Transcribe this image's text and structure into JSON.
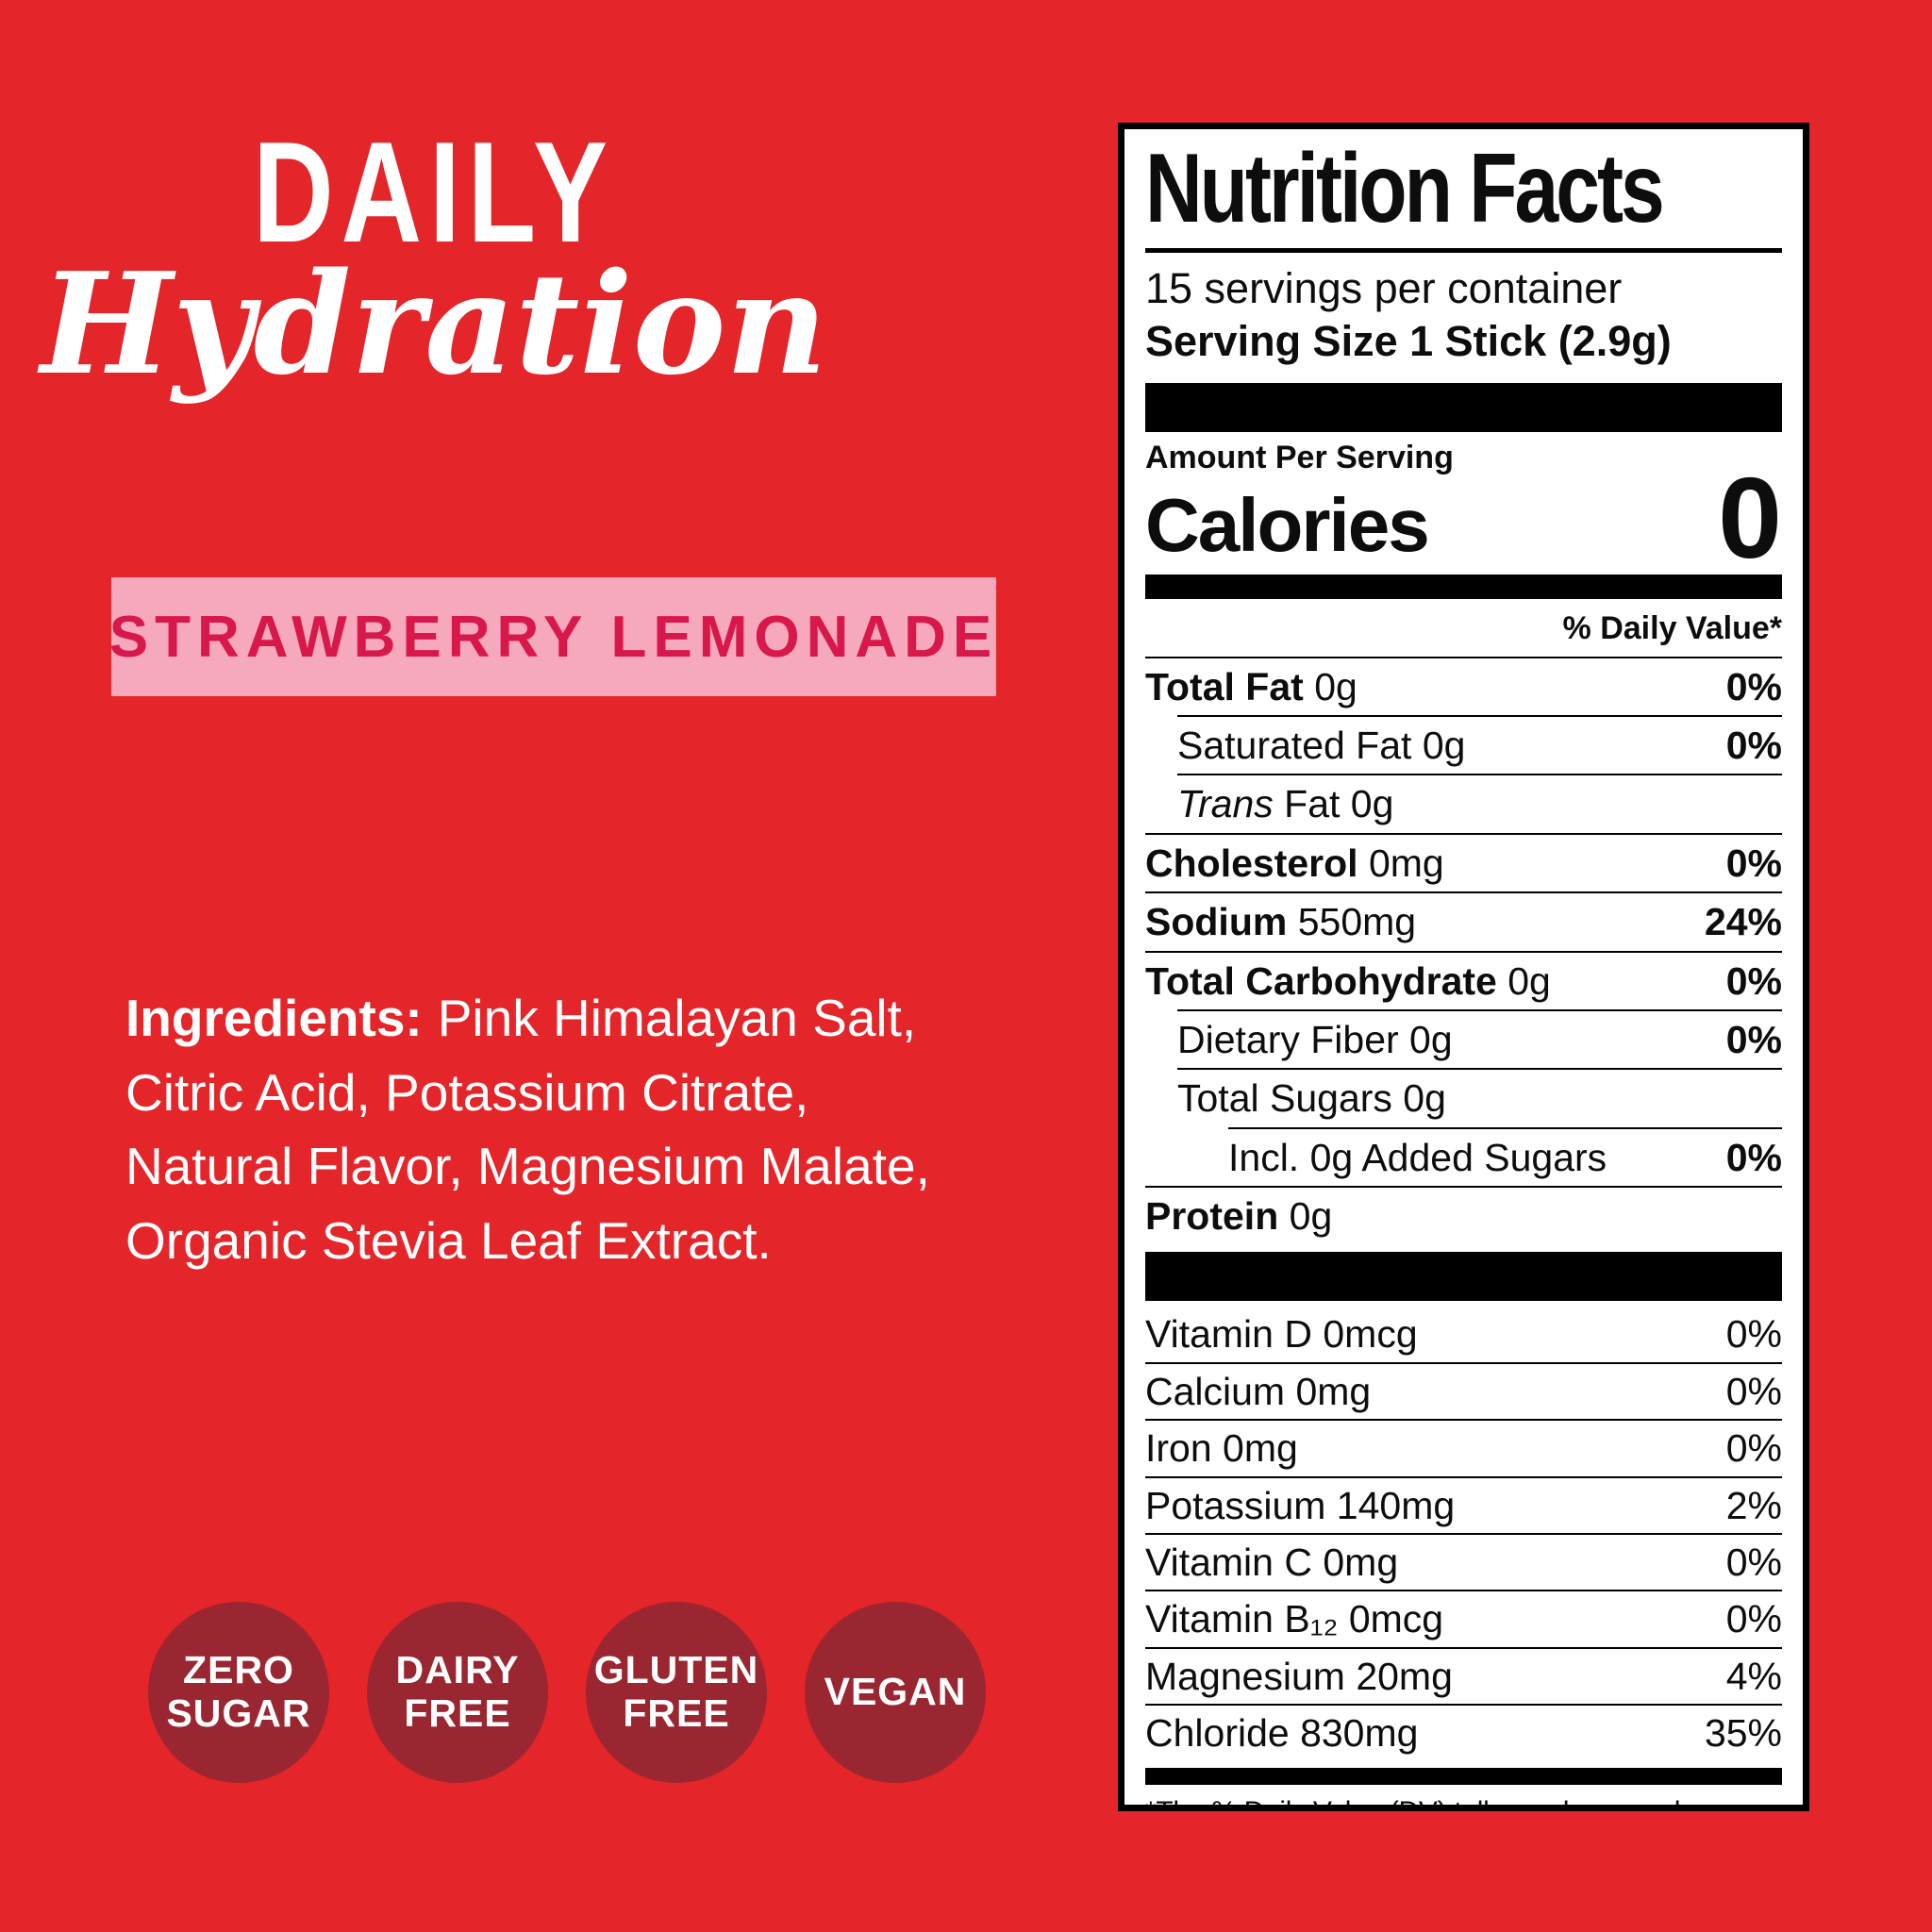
{
  "colors": {
    "background": "#E42529",
    "panel_bg": "#FFFFFF",
    "badge_bg": "#F6A8BC",
    "badge_text": "#D8174A",
    "circle_bg": "#992630"
  },
  "brand": {
    "title": "DAILY",
    "subtitle": "Hydration"
  },
  "flavor_badge": {
    "label": "STRAWBERRY LEMONADE"
  },
  "ingredients": {
    "label": "Ingredients:",
    "text": "Pink Himalayan Salt, Citric Acid, Potassium Citrate, Natural Flavor, Magnesium Malate, Organic Stevia Leaf Extract."
  },
  "diet_badges": [
    {
      "lines": [
        "ZERO",
        "SUGAR"
      ]
    },
    {
      "lines": [
        "DAIRY",
        "FREE"
      ]
    },
    {
      "lines": [
        "GLUTEN",
        "FREE"
      ]
    },
    {
      "lines": [
        "VEGAN"
      ]
    }
  ],
  "nutrition": {
    "title": "Nutrition Facts",
    "servings_per_container": "15 servings per container",
    "serving_size": "Serving Size 1 Stick (2.9g)",
    "amount_per_serving": "Amount Per Serving",
    "calories_label": "Calories",
    "calories_value": "0",
    "daily_value_header": "% Daily Value*",
    "rows": [
      {
        "bold": "Total Fat",
        "rest": "0g",
        "dv": "0%",
        "dv_bold": true,
        "indent": 0
      },
      {
        "rest": "Saturated Fat 0g",
        "dv": "0%",
        "dv_bold": true,
        "indent": 1
      },
      {
        "italic": "Trans",
        "rest": "Fat 0g",
        "dv": "",
        "indent": 1
      },
      {
        "bold": "Cholesterol",
        "rest": "0mg",
        "dv": "0%",
        "dv_bold": true,
        "indent": 0
      },
      {
        "bold": "Sodium",
        "rest": "550mg",
        "dv": "24%",
        "dv_bold": true,
        "indent": 0
      },
      {
        "bold": "Total Carbohydrate",
        "rest": "0g",
        "dv": "0%",
        "dv_bold": true,
        "indent": 0
      },
      {
        "rest": "Dietary Fiber 0g",
        "dv": "0%",
        "dv_bold": true,
        "indent": 1
      },
      {
        "rest": "Total Sugars 0g",
        "dv": "",
        "indent": 1
      },
      {
        "rest": "Incl. 0g Added Sugars",
        "dv": "0%",
        "dv_bold": true,
        "indent": 2
      },
      {
        "bold": "Protein",
        "rest": "0g",
        "dv": "",
        "indent": 0
      }
    ],
    "micronutrients": [
      {
        "label": "Vitamin D 0mcg",
        "dv": "0%"
      },
      {
        "label": "Calcium 0mg",
        "dv": "0%"
      },
      {
        "label": "Iron 0mg",
        "dv": "0%"
      },
      {
        "label": "Potassium 140mg",
        "dv": "2%"
      },
      {
        "label": "Vitamin C 0mg",
        "dv": "0%"
      },
      {
        "label": "Vitamin B₁₂ 0mcg",
        "dv": "0%"
      },
      {
        "label": "Magnesium 20mg",
        "dv": "4%"
      },
      {
        "label": "Chloride 830mg",
        "dv": "35%"
      }
    ],
    "footnote": "*The % Daily Value (DV) tells you how much a nutrient in a serving of food contributes to a daily diet. 2,000 calories a day is used for general nutrition advice."
  }
}
